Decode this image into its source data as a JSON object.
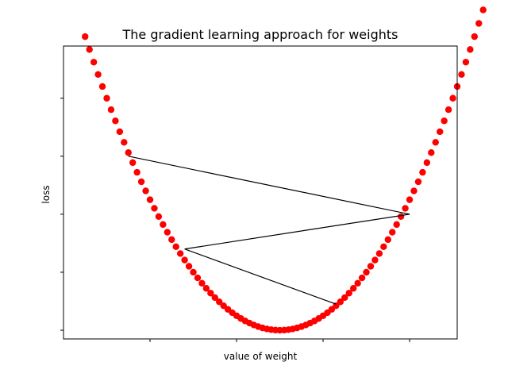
{
  "chart_data": {
    "type": "scatter",
    "title": "The gradient learning approach for weights",
    "xlabel": "value of weight",
    "ylabel": "loss",
    "xlim": [
      -5.0,
      4.1
    ],
    "ylim": [
      -0.6,
      19.6
    ],
    "grid": false,
    "x_tick_positions": [
      -3,
      -1,
      1,
      3
    ],
    "x_tick_labels": [
      "",
      "",
      "",
      ""
    ],
    "y_tick_positions": [
      0,
      4,
      8,
      12,
      16,
      20
    ],
    "y_tick_labels": [
      "",
      "",
      "",
      "",
      "",
      ""
    ],
    "curve": {
      "formula": "loss = weight^2",
      "x_start": -4.5,
      "x_end": 4.9,
      "num_points": 95,
      "color": "#ff0000",
      "marker": "circle"
    },
    "descent_path": {
      "color": "#000000",
      "points": [
        {
          "x": -3.5,
          "y": 12.0
        },
        {
          "x": 3.0,
          "y": 8.0
        },
        {
          "x": -2.2,
          "y": 5.6
        },
        {
          "x": 1.3,
          "y": 1.8
        }
      ]
    }
  }
}
